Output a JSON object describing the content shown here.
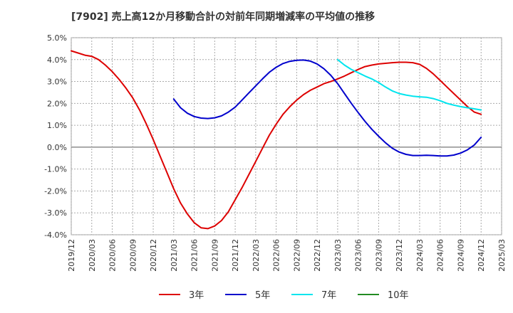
{
  "chart_data": {
    "type": "line",
    "title": "[7902]  売上高12か月移動合計の対前年同期増減率の平均値の推移",
    "xlabel": "",
    "ylabel": "",
    "x_ticks": [
      "2019/12",
      "2020/03",
      "2020/06",
      "2020/09",
      "2020/12",
      "2021/03",
      "2021/06",
      "2021/09",
      "2021/12",
      "2022/03",
      "2022/06",
      "2022/09",
      "2022/12",
      "2023/03",
      "2023/06",
      "2023/09",
      "2023/12",
      "2024/03",
      "2024/06",
      "2024/09",
      "2024/12",
      "2025/03"
    ],
    "y_ticks": [
      "5.0%",
      "4.0%",
      "3.0%",
      "2.0%",
      "1.0%",
      "0.0%",
      "-1.0%",
      "-2.0%",
      "-3.0%",
      "-4.0%"
    ],
    "ylim": [
      -4.0,
      5.0
    ],
    "grid": true,
    "legend_position": "bottom",
    "series": [
      {
        "name": "3年",
        "color": "#dd0000",
        "x": [
          "2019/12",
          "2020/01",
          "2020/02",
          "2020/03",
          "2020/04",
          "2020/05",
          "2020/06",
          "2020/07",
          "2020/08",
          "2020/09",
          "2020/10",
          "2020/11",
          "2020/12",
          "2021/01",
          "2021/02",
          "2021/03",
          "2021/04",
          "2021/05",
          "2021/06",
          "2021/07",
          "2021/08",
          "2021/09",
          "2021/10",
          "2021/11",
          "2021/12",
          "2022/01",
          "2022/02",
          "2022/03",
          "2022/04",
          "2022/05",
          "2022/06",
          "2022/07",
          "2022/08",
          "2022/09",
          "2022/10",
          "2022/11",
          "2022/12",
          "2023/01",
          "2023/02",
          "2023/03",
          "2023/04",
          "2023/05",
          "2023/06",
          "2023/07",
          "2023/08",
          "2023/09",
          "2023/10",
          "2023/11",
          "2023/12",
          "2024/01",
          "2024/02",
          "2024/03",
          "2024/04",
          "2024/05",
          "2024/06",
          "2024/07",
          "2024/08",
          "2024/09",
          "2024/10",
          "2024/11",
          "2024/12"
        ],
        "values": [
          4.4,
          4.3,
          4.2,
          4.15,
          4.0,
          3.75,
          3.45,
          3.1,
          2.7,
          2.25,
          1.7,
          1.05,
          0.35,
          -0.4,
          -1.15,
          -1.9,
          -2.55,
          -3.05,
          -3.45,
          -3.68,
          -3.72,
          -3.6,
          -3.35,
          -2.95,
          -2.4,
          -1.85,
          -1.25,
          -0.65,
          -0.05,
          0.55,
          1.05,
          1.5,
          1.85,
          2.15,
          2.4,
          2.6,
          2.75,
          2.9,
          3.0,
          3.12,
          3.25,
          3.4,
          3.55,
          3.68,
          3.75,
          3.8,
          3.83,
          3.86,
          3.88,
          3.88,
          3.86,
          3.78,
          3.6,
          3.35,
          3.05,
          2.75,
          2.45,
          2.15,
          1.85,
          1.6,
          1.5
        ]
      },
      {
        "name": "5年",
        "color": "#0000cc",
        "x": [
          "2021/03",
          "2021/04",
          "2021/05",
          "2021/06",
          "2021/07",
          "2021/08",
          "2021/09",
          "2021/10",
          "2021/11",
          "2021/12",
          "2022/01",
          "2022/02",
          "2022/03",
          "2022/04",
          "2022/05",
          "2022/06",
          "2022/07",
          "2022/08",
          "2022/09",
          "2022/10",
          "2022/11",
          "2022/12",
          "2023/01",
          "2023/02",
          "2023/03",
          "2023/04",
          "2023/05",
          "2023/06",
          "2023/07",
          "2023/08",
          "2023/09",
          "2023/10",
          "2023/11",
          "2023/12",
          "2024/01",
          "2024/02",
          "2024/03",
          "2024/04",
          "2024/05",
          "2024/06",
          "2024/07",
          "2024/08",
          "2024/09",
          "2024/10",
          "2024/11",
          "2024/12"
        ],
        "values": [
          2.2,
          1.8,
          1.55,
          1.4,
          1.33,
          1.31,
          1.34,
          1.43,
          1.6,
          1.83,
          2.15,
          2.48,
          2.8,
          3.12,
          3.42,
          3.65,
          3.82,
          3.92,
          3.97,
          3.98,
          3.93,
          3.8,
          3.58,
          3.28,
          2.9,
          2.45,
          2.0,
          1.58,
          1.18,
          0.82,
          0.5,
          0.2,
          -0.05,
          -0.22,
          -0.33,
          -0.38,
          -0.38,
          -0.37,
          -0.38,
          -0.4,
          -0.4,
          -0.36,
          -0.27,
          -0.12,
          0.1,
          0.45
        ]
      },
      {
        "name": "7年",
        "color": "#00e5ee",
        "x": [
          "2023/03",
          "2023/04",
          "2023/05",
          "2023/06",
          "2023/07",
          "2023/08",
          "2023/09",
          "2023/10",
          "2023/11",
          "2023/12",
          "2024/01",
          "2024/02",
          "2024/03",
          "2024/04",
          "2024/05",
          "2024/06",
          "2024/07",
          "2024/08",
          "2024/09",
          "2024/10",
          "2024/11",
          "2024/12"
        ],
        "values": [
          4.0,
          3.75,
          3.55,
          3.4,
          3.25,
          3.12,
          2.95,
          2.75,
          2.57,
          2.45,
          2.38,
          2.33,
          2.3,
          2.28,
          2.22,
          2.12,
          2.0,
          1.92,
          1.85,
          1.8,
          1.75,
          1.7
        ]
      },
      {
        "name": "10年",
        "color": "#228b22",
        "x": [],
        "values": []
      }
    ]
  }
}
